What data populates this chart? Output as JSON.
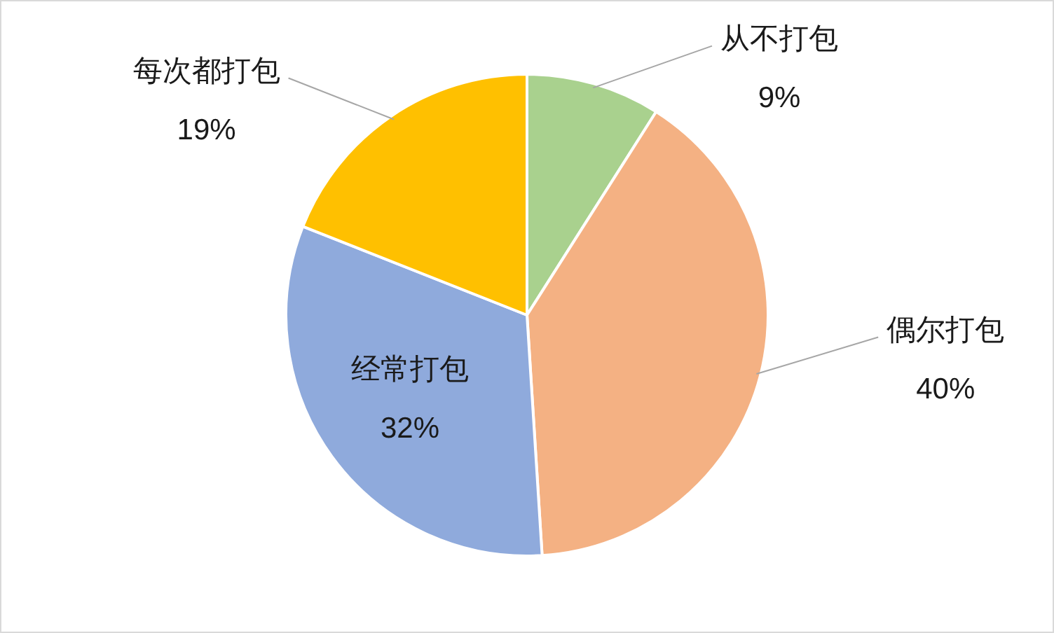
{
  "chart_data": {
    "type": "pie",
    "categories": [
      "从不打包",
      "偶尔打包",
      "经常打包",
      "每次都打包"
    ],
    "values": [
      9,
      40,
      32,
      19
    ],
    "colors": [
      "#a9d18e",
      "#f4b183",
      "#8faadc",
      "#ffc000"
    ],
    "value_labels": [
      "9%",
      "40%",
      "32%",
      "19%"
    ]
  }
}
